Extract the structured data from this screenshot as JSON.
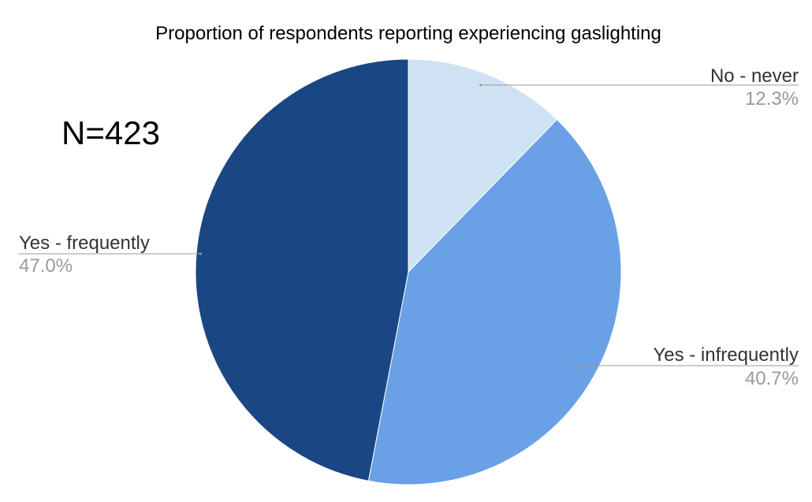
{
  "chart_data": {
    "type": "pie",
    "title": "Proportion of respondents reporting experiencing gaslighting",
    "annotation": "N=423",
    "categories": [
      "No - never",
      "Yes - infrequently",
      "Yes - frequently"
    ],
    "values": [
      12.3,
      40.7,
      47.0
    ],
    "value_labels": [
      "12.3%",
      "40.7%",
      "47.0%"
    ],
    "colors": [
      "#cfe2f3",
      "#6aa0e6",
      "#1a4784"
    ],
    "start_angle_deg": 0,
    "direction": "clockwise",
    "legend": "labels-outside"
  }
}
